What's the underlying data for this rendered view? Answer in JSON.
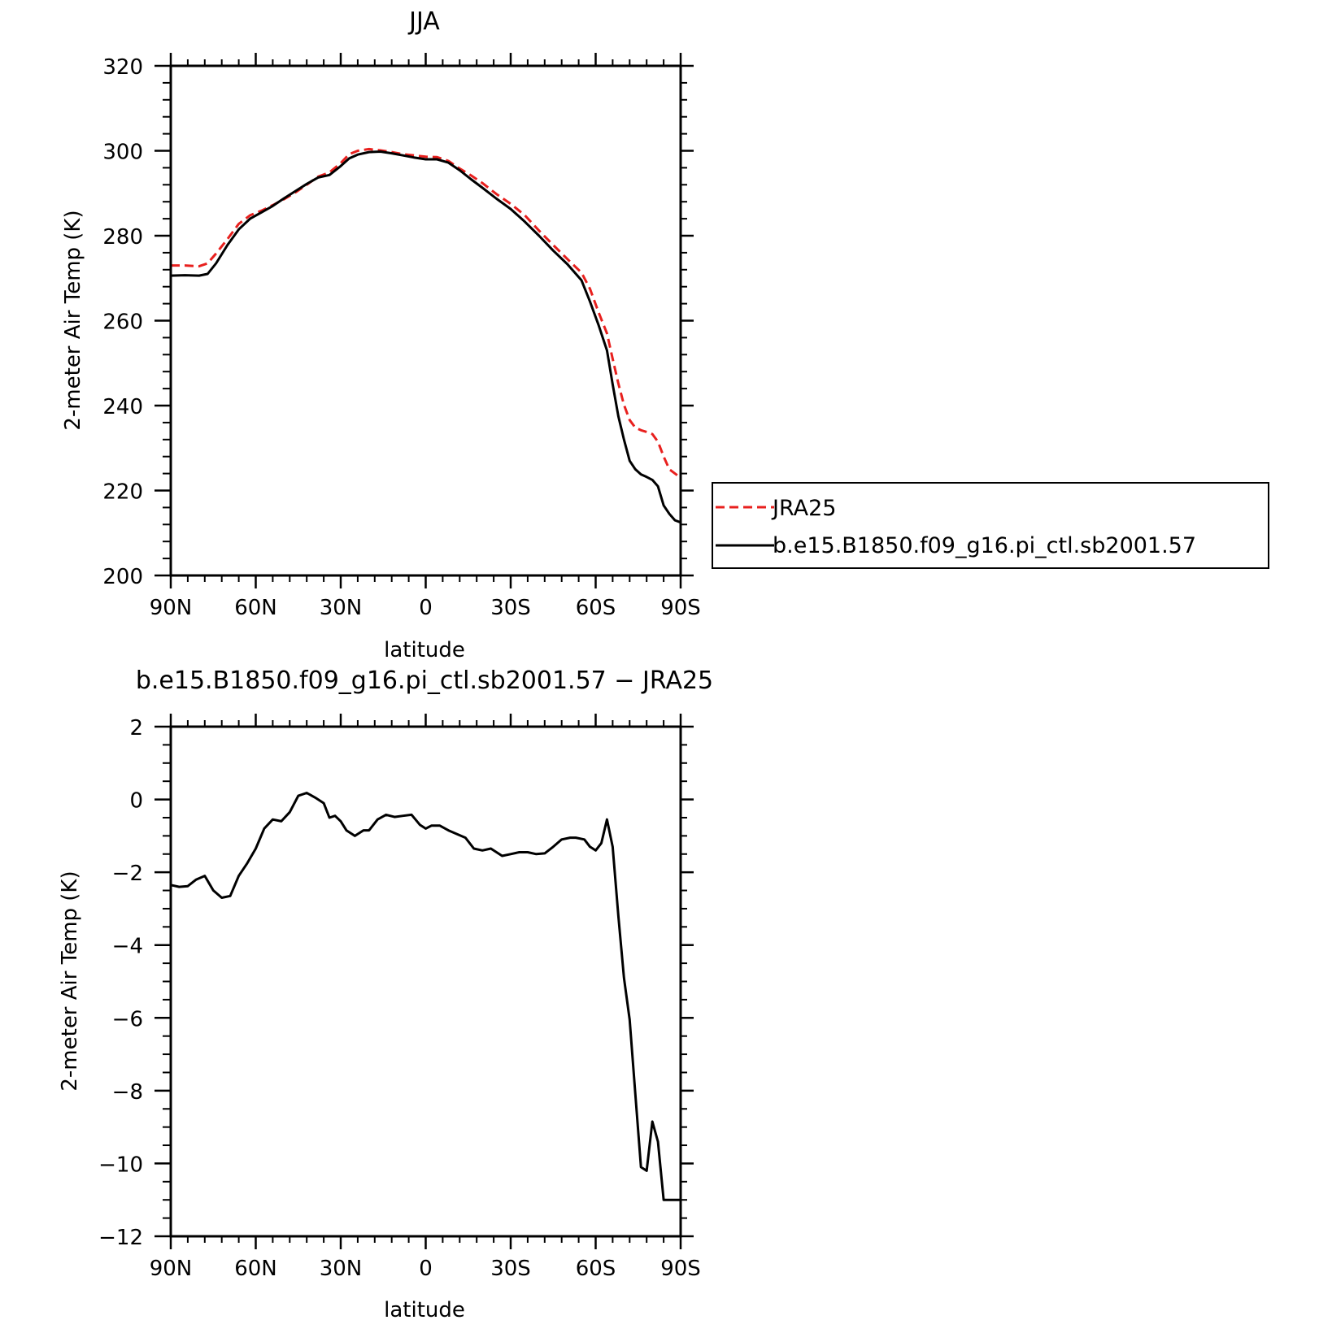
{
  "colors": {
    "obs": "#e8201e",
    "model": "#000000"
  },
  "chart_data": [
    {
      "type": "line",
      "title": "JJA",
      "xlabel": "latitude",
      "ylabel": "2-meter Air Temp (K)",
      "xlim": [
        90,
        -90
      ],
      "ylim": [
        200,
        320
      ],
      "xticks": [
        90,
        60,
        30,
        0,
        -30,
        -60,
        -90
      ],
      "xticklabels": [
        "90N",
        "60N",
        "30N",
        "0",
        "30S",
        "60S",
        "90S"
      ],
      "yticks": [
        200,
        220,
        240,
        260,
        280,
        300,
        320
      ],
      "yticklabels": [
        "200",
        "220",
        "240",
        "260",
        "280",
        "300",
        "320"
      ],
      "grid": false,
      "legend": "right",
      "series": [
        {
          "name": "JRA25",
          "style": "dashed",
          "color": "#e8201e",
          "x": [
            90,
            85,
            80,
            77,
            74,
            70,
            66,
            62,
            58,
            54,
            50,
            46,
            42,
            38,
            34,
            30,
            27,
            24,
            20,
            16,
            12,
            8,
            4,
            0,
            -4,
            -8,
            -12,
            -16,
            -20,
            -25,
            -30,
            -35,
            -40,
            -45,
            -50,
            -55,
            -58,
            -61,
            -64,
            -66,
            -68,
            -70,
            -72,
            -74,
            -76,
            -78,
            -80,
            -82,
            -84,
            -86,
            -88,
            -90
          ],
          "y": [
            273.0,
            273.0,
            272.8,
            273.5,
            275.8,
            279.2,
            282.8,
            284.8,
            285.9,
            287.2,
            288.6,
            290.2,
            292.0,
            293.9,
            294.9,
            297.1,
            299.2,
            300.0,
            300.4,
            300.1,
            299.7,
            299.2,
            298.9,
            298.6,
            298.5,
            297.6,
            295.8,
            294.2,
            292.4,
            289.8,
            287.5,
            284.8,
            281.2,
            277.8,
            274.5,
            271.3,
            267.5,
            262.0,
            257.0,
            251.0,
            245.2,
            240.2,
            236.6,
            234.8,
            234.2,
            233.8,
            233.3,
            231.5,
            228.0,
            225.0,
            224.0,
            223.0
          ]
        },
        {
          "name": "b.e15.B1850.f09_g16.pi_ctl.sb2001.57",
          "style": "solid",
          "color": "#000000",
          "x": [
            90,
            85,
            80,
            77,
            74,
            70,
            66,
            62,
            58,
            54,
            50,
            46,
            42,
            38,
            34,
            30,
            27,
            24,
            20,
            16,
            12,
            8,
            4,
            0,
            -4,
            -8,
            -12,
            -16,
            -20,
            -25,
            -30,
            -35,
            -40,
            -45,
            -50,
            -55,
            -58,
            -61,
            -64,
            -66,
            -68,
            -70,
            -72,
            -74,
            -76,
            -78,
            -80,
            -82,
            -84,
            -86,
            -88,
            -90
          ],
          "y": [
            270.6,
            270.7,
            270.6,
            271.0,
            273.5,
            277.8,
            281.5,
            284.0,
            285.5,
            287.0,
            288.8,
            290.5,
            292.2,
            293.7,
            294.3,
            296.4,
            298.2,
            299.1,
            299.7,
            299.8,
            299.4,
            298.9,
            298.4,
            298.0,
            298.0,
            297.2,
            295.4,
            293.3,
            291.3,
            288.7,
            286.3,
            283.3,
            280.0,
            276.5,
            273.3,
            269.5,
            264.5,
            259.0,
            253.0,
            245.0,
            237.5,
            232.0,
            227.0,
            225.0,
            223.8,
            223.2,
            222.5,
            221.0,
            216.5,
            214.5,
            213.0,
            212.5
          ]
        }
      ]
    },
    {
      "type": "line",
      "title": "b.e15.B1850.f09_g16.pi_ctl.sb2001.57 − JRA25",
      "xlabel": "latitude",
      "ylabel": "2-meter Air Temp (K)",
      "xlim": [
        90,
        -90
      ],
      "ylim": [
        -12,
        2
      ],
      "xticks": [
        90,
        60,
        30,
        0,
        -30,
        -60,
        -90
      ],
      "xticklabels": [
        "90N",
        "60N",
        "30N",
        "0",
        "30S",
        "60S",
        "90S"
      ],
      "yticks": [
        -12,
        -10,
        -8,
        -6,
        -4,
        -2,
        0,
        2
      ],
      "yticklabels": [
        "−12",
        "−10",
        "−8",
        "−6",
        "−4",
        "−2",
        "0",
        "2"
      ],
      "grid": false,
      "series": [
        {
          "name": "",
          "style": "solid",
          "color": "#000000",
          "x": [
            90,
            87,
            84,
            81,
            78,
            75,
            72,
            69,
            66,
            63,
            60,
            57,
            54,
            51,
            48,
            45,
            42,
            39,
            36,
            34,
            32,
            30,
            28,
            25,
            22,
            20,
            17,
            14,
            11,
            8,
            5,
            2,
            0,
            -2,
            -5,
            -8,
            -11,
            -14,
            -17,
            -20,
            -23,
            -27,
            -30,
            -33,
            -36,
            -39,
            -42,
            -45,
            -48,
            -51,
            -53,
            -56,
            -58,
            -60,
            -62,
            -64,
            -66,
            -68,
            -70,
            -72,
            -74,
            -76,
            -78,
            -80,
            -82,
            -84,
            -86,
            -88,
            -90
          ],
          "y": [
            -2.35,
            -2.4,
            -2.38,
            -2.2,
            -2.1,
            -2.5,
            -2.7,
            -2.65,
            -2.1,
            -1.75,
            -1.35,
            -0.8,
            -0.55,
            -0.6,
            -0.35,
            0.1,
            0.18,
            0.05,
            -0.1,
            -0.5,
            -0.45,
            -0.6,
            -0.85,
            -1.0,
            -0.85,
            -0.85,
            -0.55,
            -0.42,
            -0.48,
            -0.45,
            -0.42,
            -0.7,
            -0.8,
            -0.72,
            -0.72,
            -0.85,
            -0.95,
            -1.05,
            -1.35,
            -1.4,
            -1.35,
            -1.55,
            -1.5,
            -1.45,
            -1.45,
            -1.5,
            -1.48,
            -1.3,
            -1.1,
            -1.05,
            -1.05,
            -1.1,
            -1.3,
            -1.4,
            -1.2,
            -0.55,
            -1.3,
            -3.2,
            -4.9,
            -6.05,
            -8.1,
            -10.1,
            -10.2,
            -8.85,
            -9.4,
            -11.0,
            -11.0,
            -11.0,
            -11.0
          ]
        }
      ]
    }
  ]
}
